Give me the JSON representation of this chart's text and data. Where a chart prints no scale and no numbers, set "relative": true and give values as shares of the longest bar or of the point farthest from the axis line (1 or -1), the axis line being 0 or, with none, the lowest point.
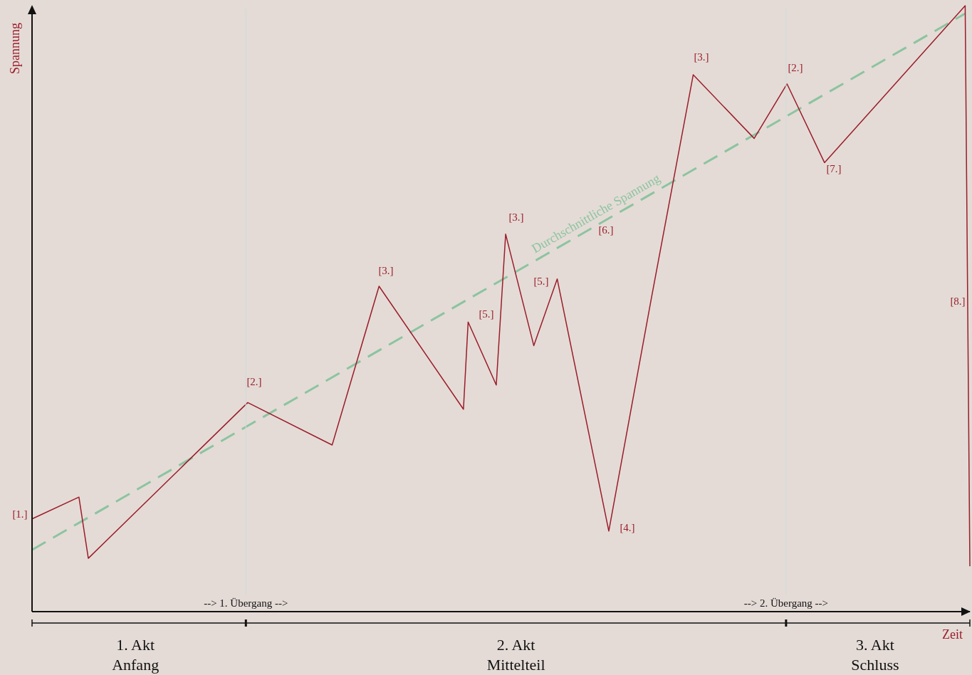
{
  "chart_data": {
    "type": "line",
    "relative": true,
    "xlabel": "Zeit",
    "ylabel": "Spannung",
    "marker": "none",
    "categories": [
      null,
      null,
      null,
      null,
      null,
      null,
      null,
      null,
      null,
      null,
      null,
      null,
      null,
      null,
      null,
      null,
      null,
      null,
      null,
      null,
      null,
      null,
      null,
      null,
      null,
      null,
      null,
      null,
      null,
      null,
      null,
      null,
      null,
      null,
      null,
      null,
      null,
      null,
      null,
      null,
      null,
      null,
      null,
      null,
      null,
      null,
      null,
      null,
      null,
      null,
      null,
      null,
      null,
      null,
      null,
      null,
      null,
      null,
      null,
      null,
      null,
      null,
      null,
      null,
      null,
      null,
      null,
      null,
      null,
      null,
      null,
      null,
      null,
      null,
      null,
      null,
      null,
      null,
      null,
      null,
      null,
      null,
      null,
      null,
      null,
      null,
      null,
      null,
      null,
      null,
      null,
      null,
      null,
      null,
      null,
      null,
      null,
      null,
      null,
      null,
      null,
      null,
      null,
      null,
      null,
      null,
      null,
      null,
      null,
      null,
      null,
      null,
      null,
      null,
      null,
      null,
      null,
      null,
      null,
      null,
      null,
      null,
      null,
      null,
      null,
      null,
      null,
      null,
      null,
      null,
      null,
      null,
      null,
      null,
      null,
      null,
      null,
      null,
      null,
      null,
      null,
      null,
      null,
      null,
      null,
      null,
      null,
      null,
      null,
      null,
      null,
      null,
      null,
      null,
      null,
      null,
      null,
      null,
      null,
      null,
      null,
      null,
      null,
      null,
      null,
      null,
      null,
      null,
      null,
      null,
      null,
      null,
      null,
      null,
      null,
      null,
      null,
      null,
      null,
      null,
      null,
      null,
      null,
      null,
      null,
      null,
      null,
      null,
      null,
      null,
      null,
      null,
      null,
      null,
      null,
      null,
      null,
      null,
      null,
      null,
      null
    ],
    "series": [
      {
        "color": "#9b1c2a",
        "values": [
          0.153,
          null,
          null,
          null,
          null,
          null,
          null,
          null,
          null,
          null,
          0.189,
          null,
          0.088,
          null,
          null,
          null,
          null,
          null,
          null,
          null,
          null,
          null,
          null,
          null,
          null,
          null,
          null,
          null,
          null,
          null,
          null,
          null,
          null,
          null,
          null,
          null,
          null,
          null,
          null,
          null,
          null,
          null,
          null,
          null,
          null,
          null,
          0.345,
          null,
          null,
          null,
          null,
          null,
          null,
          null,
          null,
          null,
          null,
          null,
          null,
          null,
          null,
          null,
          null,
          null,
          0.275,
          null,
          null,
          null,
          null,
          null,
          null,
          null,
          null,
          null,
          0.537,
          null,
          null,
          null,
          null,
          null,
          null,
          null,
          null,
          null,
          null,
          null,
          null,
          null,
          null,
          null,
          null,
          null,
          0.334,
          0.478,
          null,
          null,
          null,
          null,
          null,
          0.374,
          null,
          0.623,
          null,
          null,
          null,
          null,
          null,
          0.439,
          null,
          null,
          null,
          null,
          0.549,
          null,
          null,
          null,
          null,
          null,
          null,
          null,
          null,
          null,
          null,
          0.133,
          null,
          null,
          null,
          null,
          null,
          null,
          null,
          null,
          0.514,
          null,
          null,
          null,
          null,
          null,
          null,
          null,
          null,
          0.886,
          null,
          null,
          null,
          null,
          null,
          null,
          null,
          null,
          null,
          null,
          null,
          null,
          0.781,
          null,
          null,
          null,
          null,
          null,
          null,
          0.871,
          null,
          null,
          null,
          null,
          null,
          null,
          null,
          0.741,
          null,
          null,
          null,
          null,
          null,
          null,
          null,
          null,
          null,
          null,
          null,
          null,
          null,
          null,
          null,
          null,
          null,
          null,
          null,
          null,
          null,
          null,
          null,
          null,
          null,
          null,
          null,
          null,
          null,
          1,
          0.075
        ],
        "line_style": "solid"
      },
      {
        "name": "Durchschnittliche Spannung",
        "color": "#8cc4a0",
        "line_style": "dashed",
        "values": [
          0.102,
          null,
          null,
          null,
          null,
          null,
          null,
          null,
          null,
          null,
          null,
          null,
          null,
          null,
          null,
          null,
          null,
          null,
          null,
          null,
          null,
          null,
          null,
          null,
          null,
          null,
          null,
          null,
          null,
          null,
          null,
          null,
          null,
          null,
          null,
          null,
          null,
          null,
          null,
          null,
          null,
          null,
          null,
          null,
          null,
          null,
          null,
          null,
          null,
          null,
          null,
          null,
          null,
          null,
          null,
          null,
          null,
          null,
          null,
          null,
          null,
          null,
          null,
          null,
          null,
          null,
          null,
          null,
          null,
          null,
          null,
          null,
          null,
          null,
          null,
          null,
          null,
          null,
          null,
          null,
          null,
          null,
          null,
          null,
          null,
          null,
          null,
          null,
          null,
          null,
          null,
          null,
          null,
          null,
          null,
          null,
          null,
          null,
          null,
          null,
          null,
          null,
          null,
          null,
          null,
          null,
          null,
          null,
          null,
          null,
          null,
          null,
          null,
          null,
          null,
          null,
          null,
          null,
          null,
          null,
          null,
          null,
          null,
          null,
          null,
          null,
          null,
          null,
          null,
          null,
          null,
          null,
          null,
          null,
          null,
          null,
          null,
          null,
          null,
          null,
          null,
          null,
          null,
          null,
          null,
          null,
          null,
          null,
          null,
          null,
          null,
          null,
          null,
          null,
          null,
          null,
          null,
          null,
          null,
          null,
          null,
          null,
          null,
          null,
          null,
          null,
          null,
          null,
          null,
          null,
          null,
          null,
          null,
          null,
          null,
          null,
          null,
          null,
          null,
          null,
          null,
          null,
          null,
          null,
          null,
          null,
          null,
          null,
          null,
          null,
          null,
          null,
          null,
          null,
          null,
          null,
          null,
          null,
          null,
          0.987,
          null
        ]
      }
    ],
    "annotations": [
      "[1.]",
      "[2.]",
      "[3.]",
      "[5.]",
      "[3.]",
      "[5.]",
      "[6.]",
      "[4.]",
      "[3.]",
      "[2.]",
      "[7.]",
      "[8.]",
      "--> 1. Übergang -->",
      "--> 2. Übergang -->",
      "1. Akt\nAnfang",
      "2. Akt\nMittelteil",
      "3. Akt\nSchluss"
    ]
  }
}
